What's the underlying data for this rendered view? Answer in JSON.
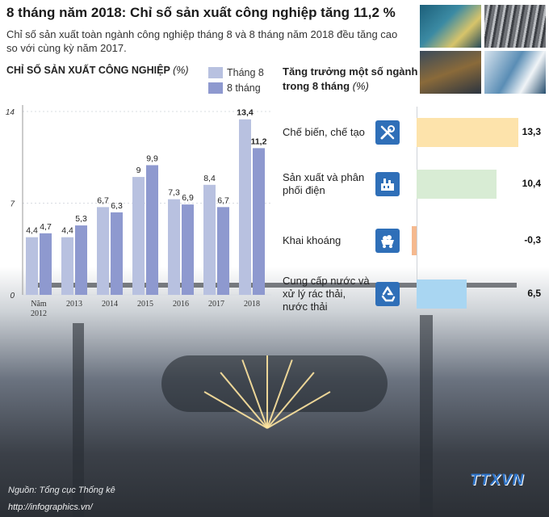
{
  "title": "8 tháng năm 2018: Chỉ số sản xuất công nghiệp tăng 11,2 %",
  "subtitle": "Chỉ số sản xuất toàn ngành công nghiệp tháng 8 và 8 tháng năm 2018 đều tăng cao so với cùng kỳ năm 2017.",
  "colors": {
    "series_thang8": "#b8c1e0",
    "series_8thang": "#8e99cf",
    "sector_colors": [
      "#fde3ab",
      "#d8ecd4",
      "#f5b98f",
      "#a9d6f2"
    ],
    "icon_bg": "#2f6fb8"
  },
  "chart_data": [
    {
      "type": "bar",
      "title": "CHỈ SỐ SẢN XUẤT CÔNG NGHIỆP",
      "unit": "(%)",
      "categories": [
        "Năm 2012",
        "2013",
        "2014",
        "2015",
        "2016",
        "2017",
        "2018"
      ],
      "series": [
        {
          "name": "Tháng 8",
          "values": [
            4.4,
            4.4,
            6.7,
            9,
            7.3,
            8.4,
            13.4
          ],
          "labels": [
            "4,4",
            "4,4",
            "6,7",
            "9",
            "7,3",
            "8,4",
            "13,4"
          ]
        },
        {
          "name": "8 tháng",
          "values": [
            4.7,
            5.3,
            6.3,
            9.9,
            6.9,
            6.7,
            11.2
          ],
          "labels": [
            "4,7",
            "5,3",
            "6,3",
            "9,9",
            "6,9",
            "6,7",
            "11,2"
          ]
        }
      ],
      "ylim": [
        0,
        14
      ],
      "yticks": [
        0,
        7,
        14
      ],
      "legend": "top-right"
    },
    {
      "type": "bar",
      "orientation": "horizontal",
      "title": "Tăng trưởng một số ngành trong 8 tháng",
      "unit": "(%)",
      "categories": [
        "Chế biến, chế tạo",
        "Sản xuất và phân phối điện",
        "Khai khoáng",
        "Cung cấp nước và xử lý rác thải, nước thải"
      ],
      "values": [
        13.3,
        10.4,
        -0.3,
        6.5
      ],
      "labels": [
        "13,3",
        "10,4",
        "-0,3",
        "6,5"
      ],
      "icons": [
        "wrench-screwdriver-icon",
        "power-plant-icon",
        "mining-cart-icon",
        "recycle-icon"
      ]
    }
  ],
  "footer": {
    "source": "Nguồn: Tổng cục Thống kê",
    "website": "http://infographics.vn/",
    "logo": "TTXVN"
  }
}
